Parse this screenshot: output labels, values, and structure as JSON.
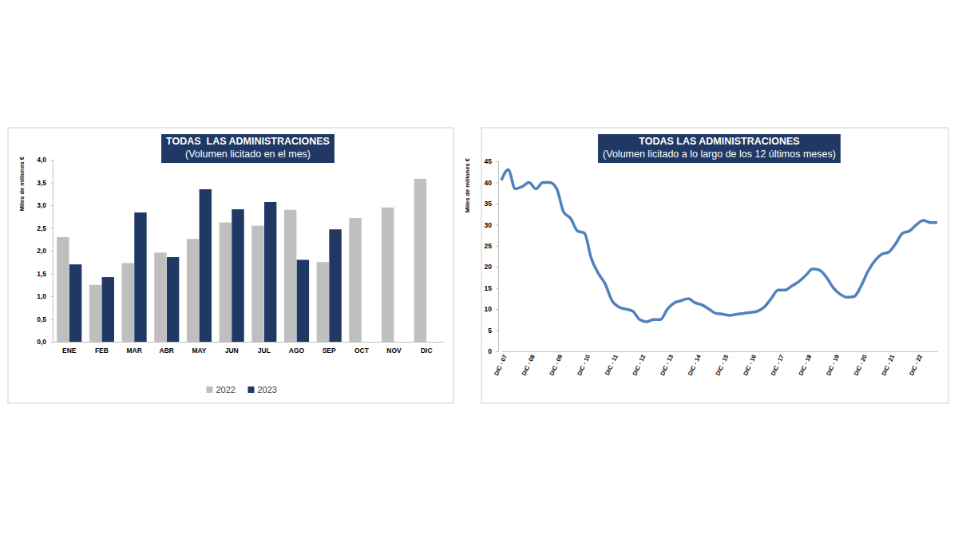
{
  "chart_data": [
    {
      "type": "bar",
      "title": "TODAS  LAS ADMINISTRACIONES",
      "subtitle": "(Volumen licitado en el mes)",
      "ylabel": "Miles de millones €",
      "categories": [
        "ENE",
        "FEB",
        "MAR",
        "ABR",
        "MAY",
        "JUN",
        "JUL",
        "AGO",
        "SEP",
        "OCT",
        "NOV",
        "DIC"
      ],
      "series": [
        {
          "name": "2022",
          "color": "#bfbfbf",
          "values": [
            2.3,
            1.25,
            1.73,
            1.96,
            2.26,
            2.62,
            2.55,
            2.9,
            1.75,
            2.72,
            2.95,
            3.58
          ]
        },
        {
          "name": "2023",
          "color": "#1f3864",
          "values": [
            1.7,
            1.42,
            2.84,
            1.86,
            3.35,
            2.91,
            3.07,
            1.8,
            2.47,
            null,
            null,
            null
          ]
        }
      ],
      "ylim": [
        0,
        4
      ],
      "yticks": [
        {
          "value": 0,
          "label": "0,0"
        },
        {
          "value": 0.5,
          "label": "0,5"
        },
        {
          "value": 1,
          "label": "1,0"
        },
        {
          "value": 1.5,
          "label": "1,5"
        },
        {
          "value": 2,
          "label": "2,0"
        },
        {
          "value": 2.5,
          "label": "2,5"
        },
        {
          "value": 3,
          "label": "3,0"
        },
        {
          "value": 3.5,
          "label": "3,5"
        },
        {
          "value": 4,
          "label": "4,0"
        }
      ],
      "legend": "bottom",
      "grid": false
    },
    {
      "type": "line",
      "title": "TODAS LAS ADMINISTRACIONES",
      "subtitle": "(Volumen licitado a lo largo de los 12 últimos meses)",
      "ylabel": "Miles de millones €",
      "categories": [
        "DIC - 07",
        null,
        null,
        null,
        "DIC - 08",
        null,
        null,
        null,
        "DIC - 09",
        null,
        null,
        null,
        "DIC - 10",
        null,
        null,
        null,
        "DIC - 11",
        null,
        null,
        null,
        "DIC - 12",
        null,
        null,
        null,
        "DIC - 13",
        null,
        null,
        null,
        "DIC - 14",
        null,
        null,
        null,
        "DIC - 15",
        null,
        null,
        null,
        "DIC - 16",
        null,
        null,
        null,
        "DIC - 17",
        null,
        null,
        null,
        "DIC - 18",
        null,
        null,
        null,
        "DIC - 19",
        null,
        null,
        null,
        "DIC - 20",
        null,
        null,
        null,
        "DIC - 21",
        null,
        null,
        null,
        "DIC - 22",
        null,
        null,
        null
      ],
      "values": [
        40.5,
        43,
        38.5,
        39,
        40,
        38.5,
        40,
        40,
        38.5,
        33,
        31.5,
        28.5,
        28,
        22,
        18.5,
        16,
        12,
        10.5,
        10,
        9.5,
        7.5,
        7,
        7.5,
        7.5,
        10,
        11.5,
        12,
        12.5,
        11.5,
        11,
        10,
        9,
        8.8,
        8.5,
        8.8,
        9,
        9.2,
        9.5,
        10.5,
        12.5,
        14.5,
        14.5,
        15.5,
        16.5,
        18,
        19.5,
        19.2,
        17.5,
        15,
        13.5,
        12.8,
        13,
        15.5,
        19,
        21.5,
        23,
        23.5,
        25.5,
        28,
        28.5,
        30,
        31,
        30.5,
        30.5
      ],
      "color": "#4f81bd",
      "ylim": [
        0,
        45
      ],
      "yticks": [
        0,
        5,
        10,
        15,
        20,
        25,
        30,
        35,
        40,
        45
      ],
      "grid": false
    }
  ]
}
